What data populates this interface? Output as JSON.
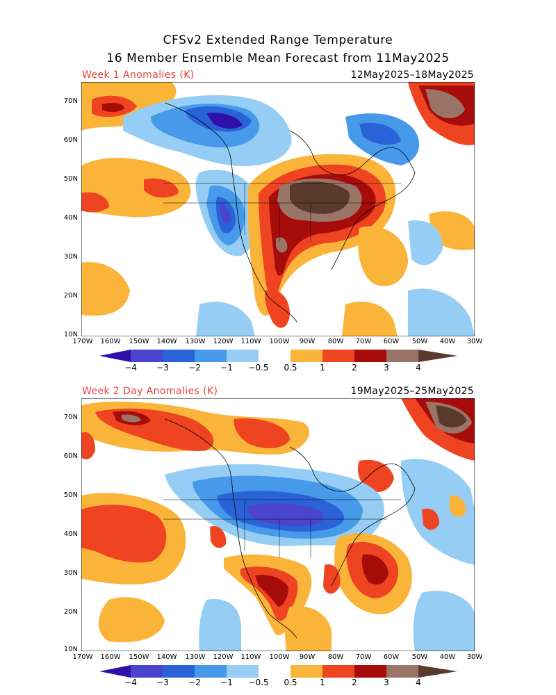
{
  "title_line1": "CFSv2 Extended Range Temperature",
  "title_line2": "16 Member Ensemble Mean Forecast from 11May2025",
  "panels": [
    {
      "label": "Week 1 Anomalies (K)",
      "dates": "12May2025–18May2025"
    },
    {
      "label": "Week 2 Day Anomalies (K)",
      "dates": "19May2025–25May2025"
    }
  ],
  "lat_labels": [
    "70N",
    "60N",
    "50N",
    "40N",
    "30N",
    "20N",
    "10N"
  ],
  "lon_labels": [
    "170W",
    "160W",
    "150W",
    "140W",
    "130W",
    "120W",
    "110W",
    "100W",
    "90W",
    "80W",
    "70W",
    "60W",
    "50W",
    "40W",
    "30W"
  ],
  "colorbar": {
    "labels": [
      "−4",
      "−3",
      "−2",
      "−1",
      "−0.5",
      "0.5",
      "1",
      "2",
      "3",
      "4"
    ],
    "colors": [
      "#3010a8",
      "#4b44cc",
      "#2a63d8",
      "#4799ea",
      "#96cdf5",
      "#ffffff",
      "#f9b439",
      "#ee4421",
      "#a60d0a",
      "#9b7468",
      "#5b3a2e"
    ]
  },
  "legend_colors": {
    "c_m4": "#3010a8",
    "c_m3": "#4b44cc",
    "c_m2": "#2a63d8",
    "c_m1": "#4799ea",
    "c_m05": "#96cdf5",
    "c_p05": "#f9b439",
    "c_p1": "#ee4421",
    "c_p2": "#a60d0a",
    "c_p3": "#9b7468",
    "c_p4": "#5b3a2e"
  }
}
